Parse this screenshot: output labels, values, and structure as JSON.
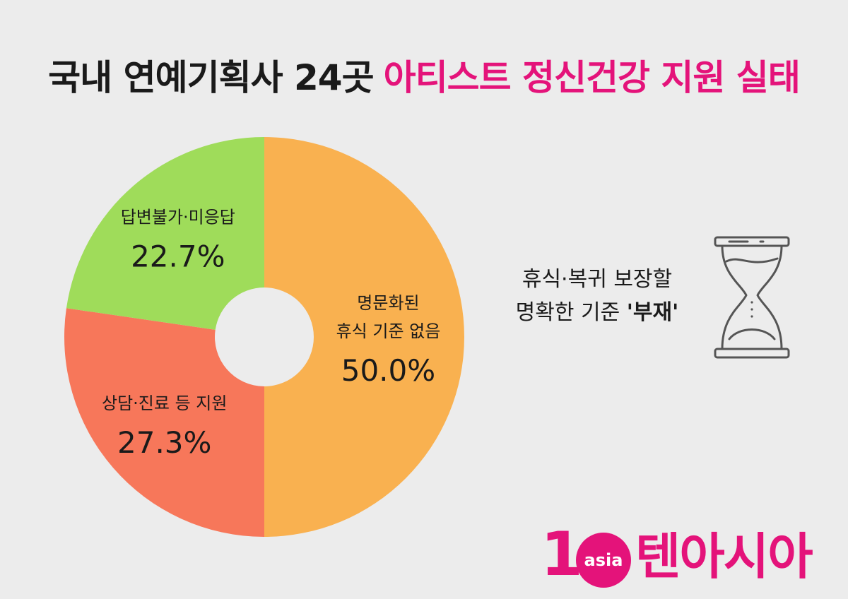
{
  "title": {
    "part1": "국내 연예기획사 24곳",
    "part2": "아티스트 정신건강 지원 실태"
  },
  "chart_data": {
    "type": "pie",
    "title": "국내 연예기획사 24곳 아티스트 정신건강 지원 실태",
    "slices": [
      {
        "label_lines": [
          "명문화된",
          "휴식 기준 없음"
        ],
        "value": 50.0,
        "value_label": "50.0%",
        "color": "#f9b150"
      },
      {
        "label_lines": [
          "상담·진료 등 지원"
        ],
        "value": 27.3,
        "value_label": "27.3%",
        "color": "#f7775a"
      },
      {
        "label_lines": [
          "답변불가·미응답"
        ],
        "value": 22.7,
        "value_label": "22.7%",
        "color": "#9fdc5a"
      }
    ]
  },
  "note": {
    "line1": "휴식·복귀 보장할",
    "line2_prefix": "명확한 기준 ",
    "line2_strong": "'부재'"
  },
  "icons": {
    "hourglass": "hourglass-icon"
  },
  "logo": {
    "number": "1",
    "circle_text": "asia",
    "brand_text": "텐아시아",
    "color": "#e4137a"
  }
}
